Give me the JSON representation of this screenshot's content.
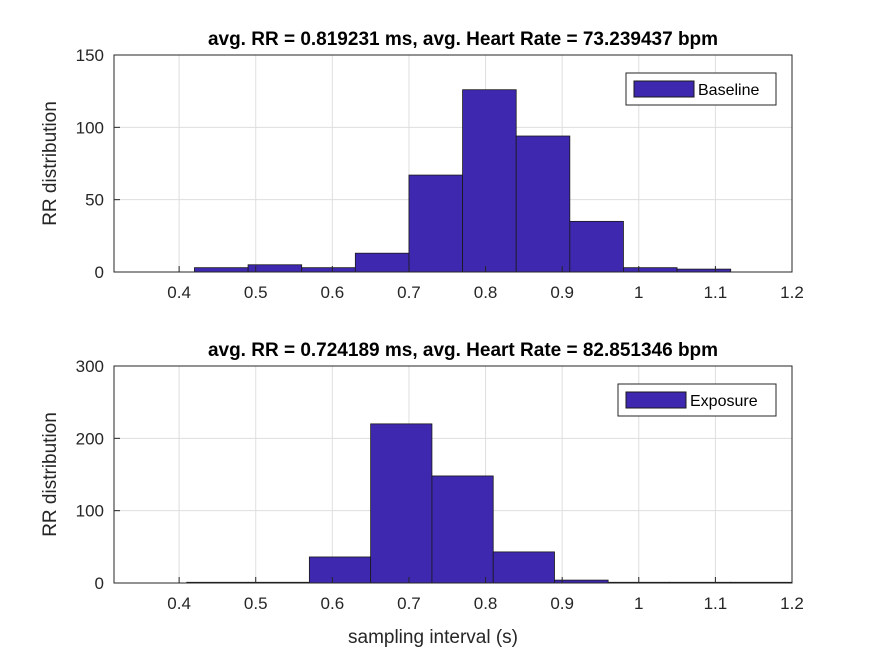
{
  "colors": {
    "bar": "#3D28AF",
    "edge": "#1a1a1a",
    "grid": "#dedede",
    "axis": "#262626"
  },
  "chart_data": [
    {
      "type": "bar",
      "title": "avg. RR = 0.819231 ms, avg. Heart Rate = 73.239437 bpm",
      "xlabel": "",
      "ylabel": "RR distribution",
      "xlim": [
        0.315,
        1.2
      ],
      "ylim": [
        0,
        150
      ],
      "xticks": [
        "0.4",
        "0.5",
        "0.6",
        "0.7",
        "0.8",
        "0.9",
        "1",
        "1.1",
        "1.2"
      ],
      "yticks": [
        "0",
        "50",
        "100",
        "150"
      ],
      "grid": true,
      "legend": {
        "label": "Baseline",
        "position": "top-right"
      },
      "bin_edges": [
        0.42,
        0.49,
        0.56,
        0.63,
        0.7,
        0.77,
        0.84,
        0.91,
        0.98,
        1.05,
        1.12
      ],
      "values": [
        3,
        5,
        3,
        13,
        67,
        126,
        94,
        35,
        3,
        2
      ]
    },
    {
      "type": "bar",
      "title": "avg. RR = 0.724189 ms, avg. Heart Rate = 82.851346 bpm",
      "xlabel": "sampling interval (s)",
      "ylabel": "RR distribution",
      "xlim": [
        0.315,
        1.2
      ],
      "ylim": [
        0,
        300
      ],
      "xticks": [
        "0.4",
        "0.5",
        "0.6",
        "0.7",
        "0.8",
        "0.9",
        "1",
        "1.1",
        "1.2"
      ],
      "yticks": [
        "0",
        "100",
        "200",
        "300"
      ],
      "grid": true,
      "legend": {
        "label": "Exposure",
        "position": "top-right"
      },
      "bin_edges": [
        0.41,
        0.49,
        0.57,
        0.65,
        0.73,
        0.81,
        0.89,
        0.96,
        1.04,
        1.12,
        1.2
      ],
      "values": [
        1,
        1,
        36,
        220,
        148,
        43,
        4,
        1,
        1,
        1
      ]
    }
  ]
}
